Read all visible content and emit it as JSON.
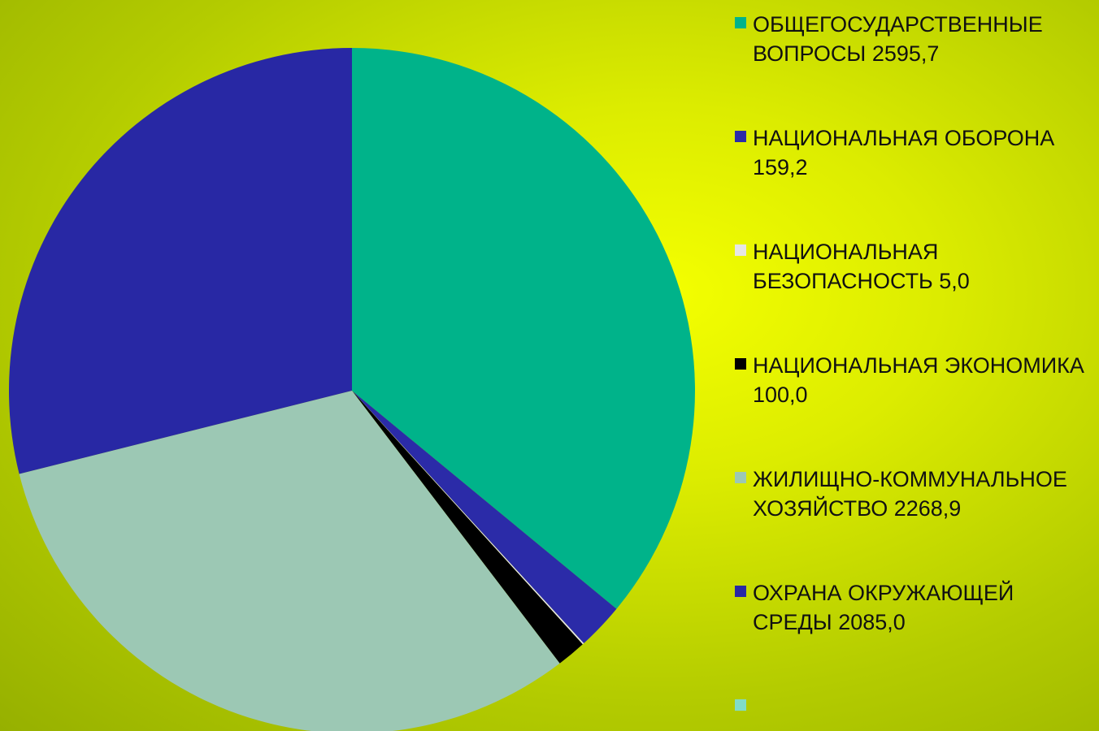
{
  "chart_data": {
    "type": "pie",
    "categories": [
      "ОБЩЕГОСУДАРСТВЕННЫЕ ВОПРОСЫ 2595,7",
      "НАЦИОНАЛЬНАЯ ОБОРОНА 159,2",
      "НАЦИОНАЛЬНАЯ БЕЗОПАСНОСТЬ 5,0",
      "НАЦИОНАЛЬНАЯ ЭКОНОМИКА 100,0",
      "ЖИЛИЩНО-КОММУНАЛЬНОЕ ХОЗЯЙСТВО 2268,9",
      "ОХРАНА ОКРУЖАЮЩЕЙ СРЕДЫ 2085,0",
      null
    ],
    "values": [
      2595.7,
      159.2,
      5.0,
      100.0,
      2268.9,
      2085.0,
      0
    ],
    "colors": [
      "#00b38a",
      "#2b2ba8",
      "#e6e6e6",
      "#000000",
      "#9cc8b4",
      "#2828a4",
      "#80dcc8"
    ],
    "legend": "right"
  }
}
